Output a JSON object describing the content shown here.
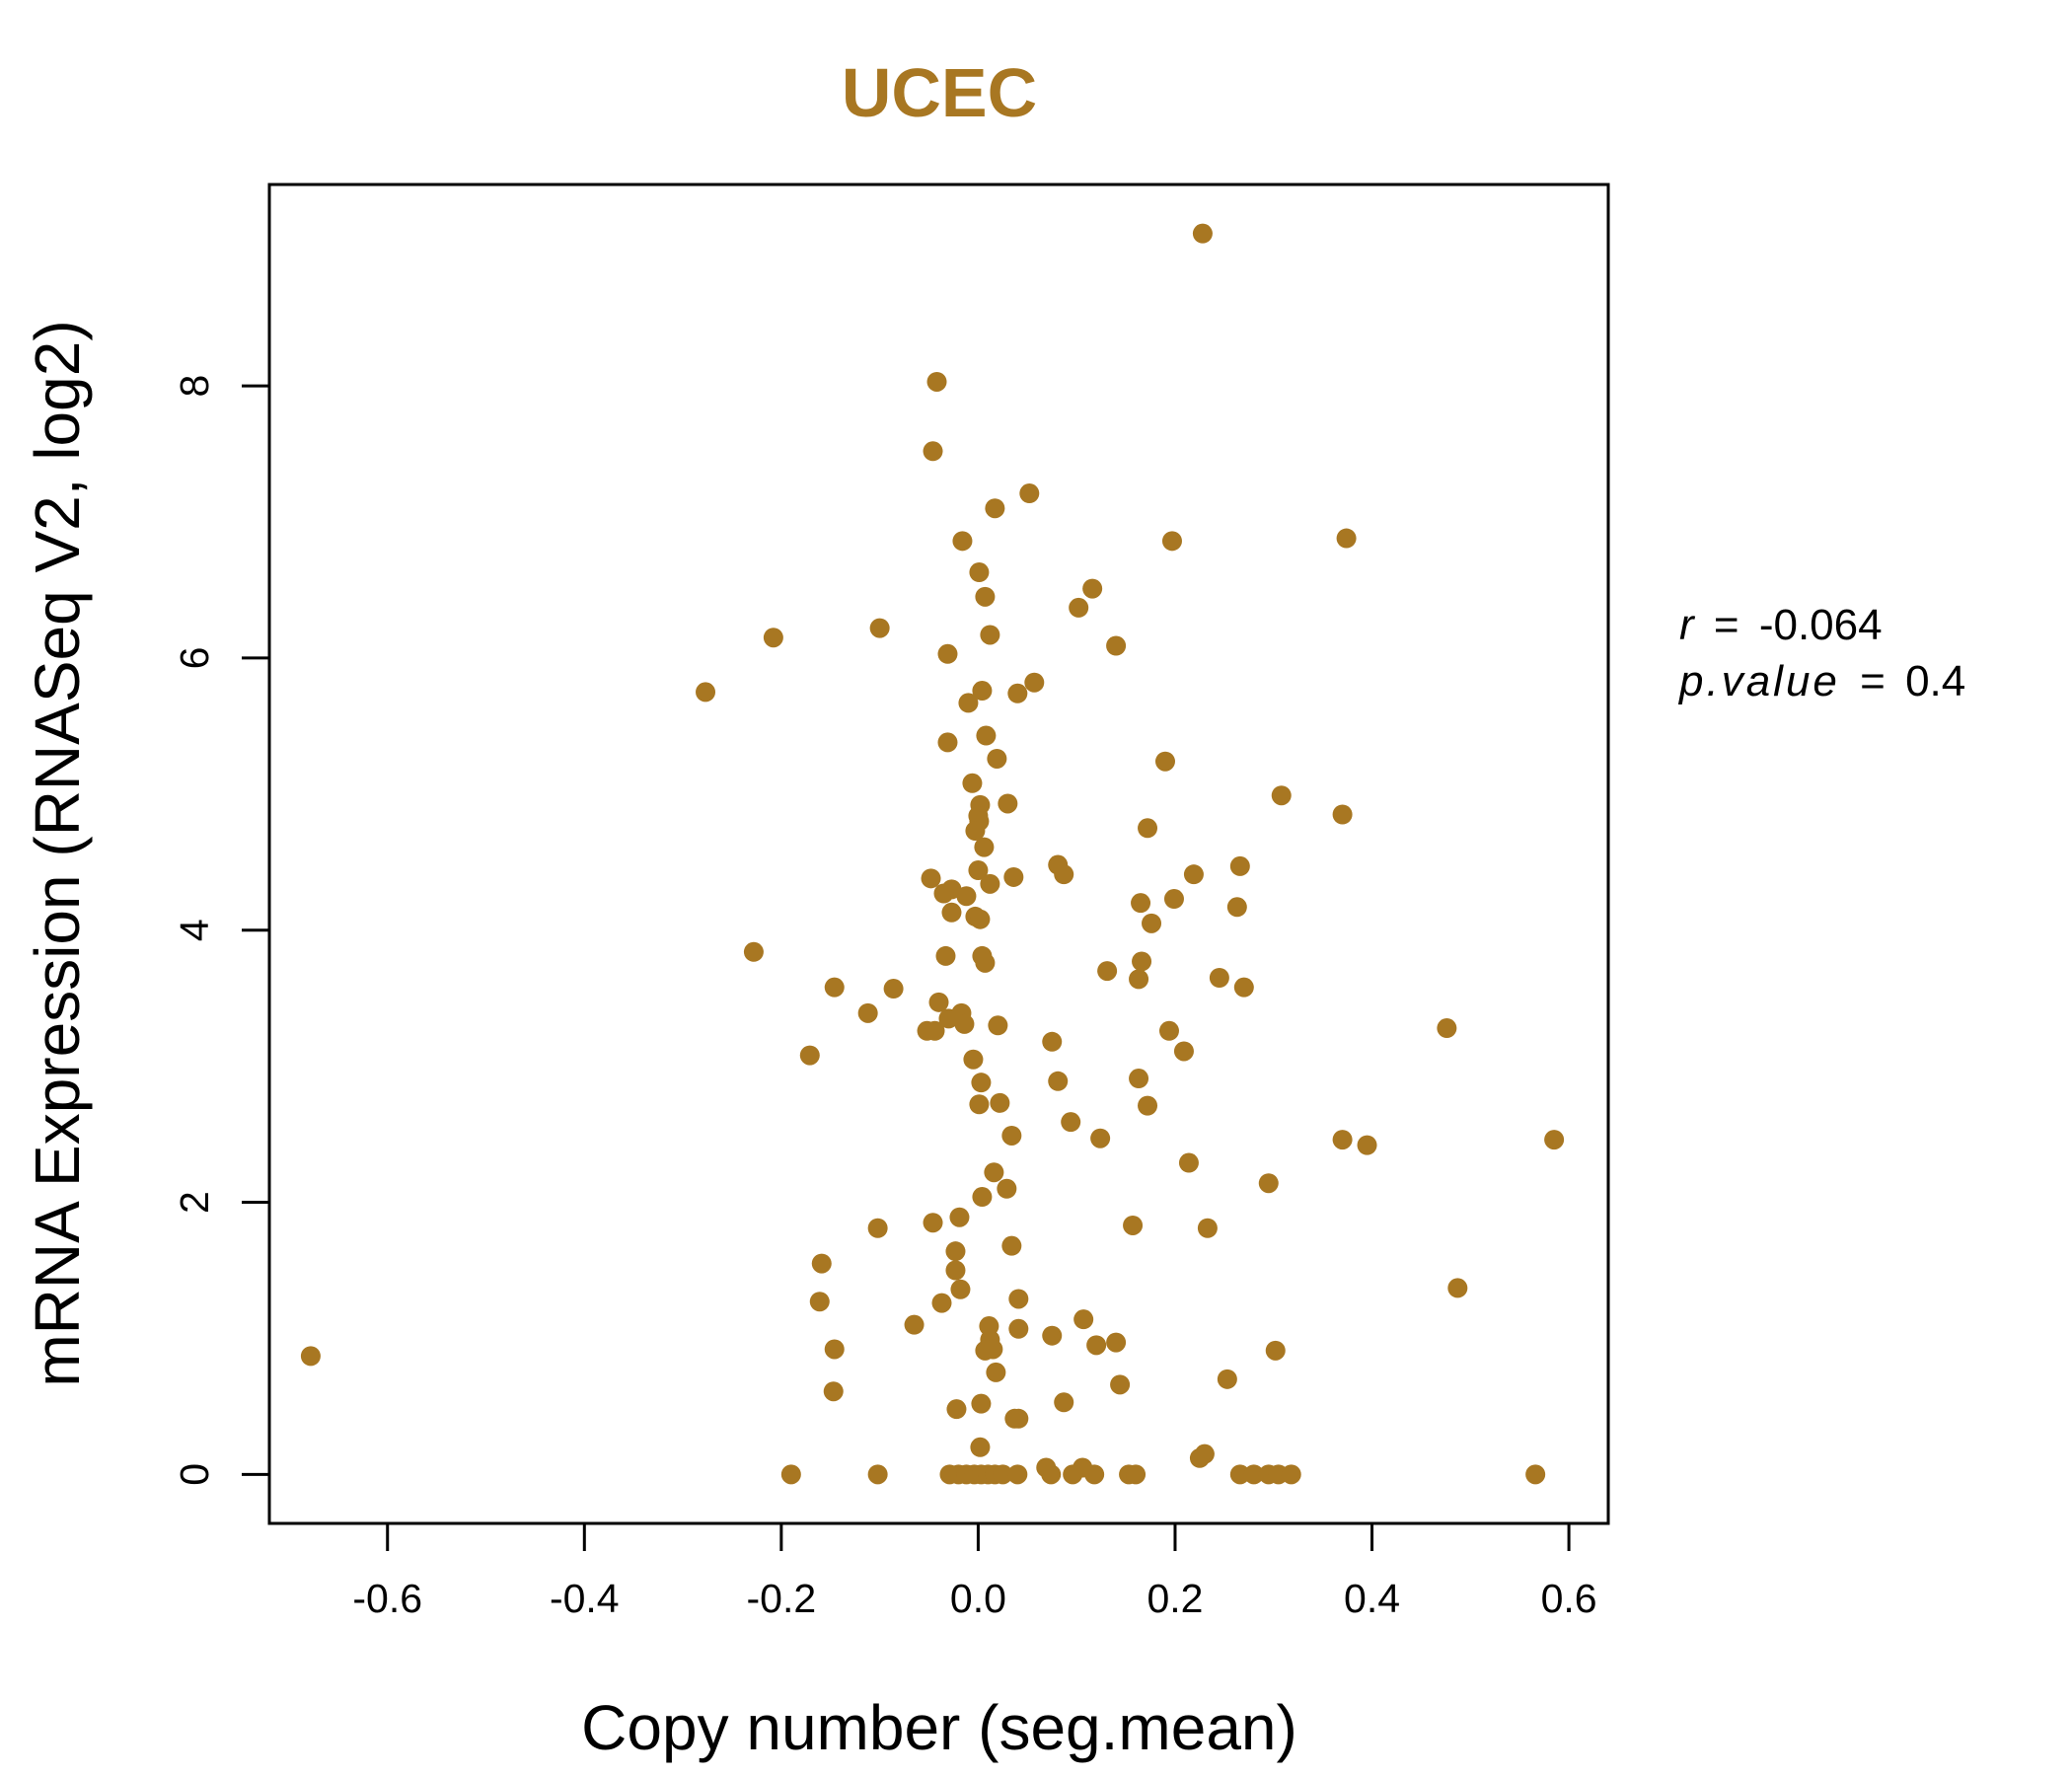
{
  "colors": {
    "accent": "#A87722",
    "axis": "#000000",
    "background": "#ffffff"
  },
  "stats": {
    "r_label": "r",
    "r_value": "-0.064",
    "p_label": "p.value",
    "p_value": "0.4"
  },
  "chart_data": {
    "type": "scatter",
    "title": "UCEC",
    "xlabel": "Copy number (seg.mean)",
    "ylabel": "mRNA Expression (RNASeq V2, log2)",
    "xlim": [
      -0.72,
      0.64
    ],
    "ylim": [
      -0.36,
      9.48
    ],
    "xticks": [
      -0.6,
      -0.4,
      -0.2,
      0.0,
      0.2,
      0.4,
      0.6
    ],
    "xtick_labels": [
      "-0.6",
      "-0.4",
      "-0.2",
      "0.0",
      "0.2",
      "0.4",
      "0.6"
    ],
    "yticks": [
      0,
      2,
      4,
      6,
      8
    ],
    "ytick_labels": [
      "0",
      "2",
      "4",
      "6",
      "8"
    ],
    "grid": false,
    "legend": "none",
    "points": [
      [
        0.228,
        9.12
      ],
      [
        -0.042,
        8.03
      ],
      [
        -0.046,
        7.52
      ],
      [
        0.052,
        7.21
      ],
      [
        0.017,
        7.1
      ],
      [
        -0.016,
        6.86
      ],
      [
        0.197,
        6.86
      ],
      [
        0.374,
        6.88
      ],
      [
        0.001,
        6.63
      ],
      [
        0.116,
        6.51
      ],
      [
        0.007,
        6.45
      ],
      [
        0.102,
        6.37
      ],
      [
        -0.1,
        6.22
      ],
      [
        -0.208,
        6.15
      ],
      [
        0.012,
        6.17
      ],
      [
        0.14,
        6.09
      ],
      [
        -0.031,
        6.03
      ],
      [
        -0.277,
        5.75
      ],
      [
        0.004,
        5.76
      ],
      [
        0.04,
        5.74
      ],
      [
        0.057,
        5.82
      ],
      [
        -0.01,
        5.67
      ],
      [
        -0.031,
        5.38
      ],
      [
        0.008,
        5.43
      ],
      [
        0.019,
        5.26
      ],
      [
        0.19,
        5.24
      ],
      [
        -0.006,
        5.08
      ],
      [
        0.308,
        4.99
      ],
      [
        0.002,
        4.92
      ],
      [
        0.03,
        4.93
      ],
      [
        0.37,
        4.85
      ],
      [
        0.0,
        4.84
      ],
      [
        0.001,
        4.8
      ],
      [
        -0.003,
        4.73
      ],
      [
        0.172,
        4.75
      ],
      [
        0.006,
        4.61
      ],
      [
        0.266,
        4.47
      ],
      [
        0.081,
        4.48
      ],
      [
        0.087,
        4.41
      ],
      [
        0.0,
        4.44
      ],
      [
        0.219,
        4.41
      ],
      [
        0.036,
        4.39
      ],
      [
        -0.048,
        4.38
      ],
      [
        0.012,
        4.34
      ],
      [
        -0.027,
        4.3
      ],
      [
        -0.035,
        4.27
      ],
      [
        -0.012,
        4.25
      ],
      [
        0.199,
        4.23
      ],
      [
        0.165,
        4.2
      ],
      [
        0.263,
        4.17
      ],
      [
        -0.027,
        4.13
      ],
      [
        -0.003,
        4.1
      ],
      [
        0.002,
        4.08
      ],
      [
        0.176,
        4.05
      ],
      [
        -0.228,
        3.84
      ],
      [
        -0.033,
        3.81
      ],
      [
        0.004,
        3.81
      ],
      [
        0.007,
        3.76
      ],
      [
        0.166,
        3.77
      ],
      [
        0.131,
        3.7
      ],
      [
        0.163,
        3.64
      ],
      [
        0.245,
        3.65
      ],
      [
        -0.146,
        3.58
      ],
      [
        -0.086,
        3.57
      ],
      [
        0.27,
        3.58
      ],
      [
        -0.04,
        3.47
      ],
      [
        -0.112,
        3.39
      ],
      [
        -0.017,
        3.39
      ],
      [
        -0.03,
        3.35
      ],
      [
        -0.014,
        3.31
      ],
      [
        0.02,
        3.3
      ],
      [
        -0.052,
        3.26
      ],
      [
        -0.044,
        3.26
      ],
      [
        0.194,
        3.26
      ],
      [
        0.476,
        3.28
      ],
      [
        0.075,
        3.18
      ],
      [
        0.209,
        3.11
      ],
      [
        -0.171,
        3.08
      ],
      [
        -0.005,
        3.05
      ],
      [
        0.003,
        2.88
      ],
      [
        0.081,
        2.89
      ],
      [
        0.163,
        2.91
      ],
      [
        0.022,
        2.73
      ],
      [
        0.001,
        2.72
      ],
      [
        0.172,
        2.71
      ],
      [
        0.094,
        2.59
      ],
      [
        0.034,
        2.49
      ],
      [
        0.124,
        2.47
      ],
      [
        0.37,
        2.46
      ],
      [
        0.395,
        2.42
      ],
      [
        0.585,
        2.46
      ],
      [
        0.214,
        2.29
      ],
      [
        0.016,
        2.22
      ],
      [
        0.029,
        2.1
      ],
      [
        0.295,
        2.14
      ],
      [
        0.004,
        2.04
      ],
      [
        -0.019,
        1.89
      ],
      [
        -0.046,
        1.85
      ],
      [
        -0.102,
        1.81
      ],
      [
        0.157,
        1.83
      ],
      [
        0.233,
        1.81
      ],
      [
        0.034,
        1.68
      ],
      [
        -0.023,
        1.64
      ],
      [
        -0.159,
        1.55
      ],
      [
        -0.023,
        1.5
      ],
      [
        0.487,
        1.37
      ],
      [
        -0.018,
        1.36
      ],
      [
        0.041,
        1.29
      ],
      [
        -0.037,
        1.26
      ],
      [
        -0.161,
        1.27
      ],
      [
        0.107,
        1.14
      ],
      [
        -0.065,
        1.1
      ],
      [
        0.011,
        1.09
      ],
      [
        0.041,
        1.07
      ],
      [
        0.075,
        1.02
      ],
      [
        0.012,
        0.99
      ],
      [
        0.14,
        0.97
      ],
      [
        0.12,
        0.95
      ],
      [
        0.007,
        0.91
      ],
      [
        0.015,
        0.92
      ],
      [
        -0.146,
        0.92
      ],
      [
        0.302,
        0.91
      ],
      [
        -0.678,
        0.87
      ],
      [
        0.018,
        0.75
      ],
      [
        0.253,
        0.7
      ],
      [
        0.144,
        0.66
      ],
      [
        -0.147,
        0.61
      ],
      [
        0.087,
        0.53
      ],
      [
        0.003,
        0.52
      ],
      [
        -0.022,
        0.48
      ],
      [
        0.041,
        0.41
      ],
      [
        0.037,
        0.41
      ],
      [
        0.002,
        0.2
      ],
      [
        0.23,
        0.15
      ],
      [
        0.225,
        0.12
      ],
      [
        0.069,
        0.05
      ],
      [
        0.106,
        0.05
      ],
      [
        -0.19,
        0.0
      ],
      [
        -0.102,
        0.0
      ],
      [
        -0.029,
        0.0
      ],
      [
        -0.02,
        0.0
      ],
      [
        -0.012,
        0.0
      ],
      [
        -0.004,
        0.0
      ],
      [
        0.003,
        0.0
      ],
      [
        0.01,
        0.0
      ],
      [
        0.017,
        0.0
      ],
      [
        0.025,
        0.0
      ],
      [
        0.04,
        0.0
      ],
      [
        0.074,
        0.0
      ],
      [
        0.096,
        0.0
      ],
      [
        0.118,
        0.0
      ],
      [
        0.153,
        0.0
      ],
      [
        0.16,
        0.0
      ],
      [
        0.266,
        0.0
      ],
      [
        0.28,
        0.0
      ],
      [
        0.295,
        0.0
      ],
      [
        0.305,
        0.0
      ],
      [
        0.318,
        0.0
      ],
      [
        0.566,
        0.0
      ]
    ]
  }
}
